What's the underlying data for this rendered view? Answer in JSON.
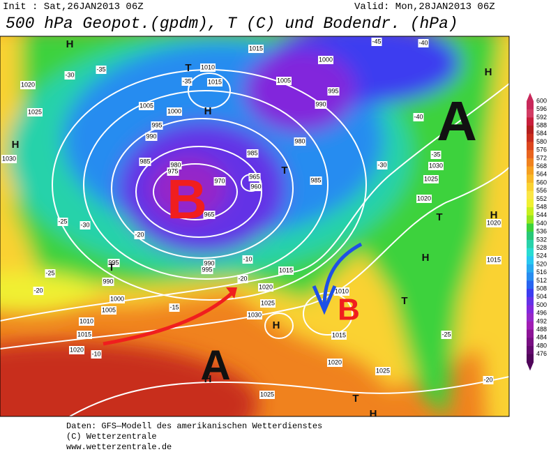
{
  "header": {
    "init": "Init : Sat,26JAN2013 06Z",
    "valid": "Valid: Mon,28JAN2013 06Z",
    "title": "500 hPa Geopot.(gpdm), T (C) und Bodendr. (hPa)"
  },
  "colorbar": [
    {
      "label": "600",
      "color": "#c8285a"
    },
    {
      "label": "596",
      "color": "#d23c64"
    },
    {
      "label": "592",
      "color": "#c81e3c"
    },
    {
      "label": "588",
      "color": "#b41e1e"
    },
    {
      "label": "584",
      "color": "#c82d1e"
    },
    {
      "label": "580",
      "color": "#dc461e"
    },
    {
      "label": "576",
      "color": "#e8641e"
    },
    {
      "label": "572",
      "color": "#f0821e"
    },
    {
      "label": "568",
      "color": "#f5a020"
    },
    {
      "label": "564",
      "color": "#f8b928"
    },
    {
      "label": "560",
      "color": "#fad232"
    },
    {
      "label": "556",
      "color": "#fbe646"
    },
    {
      "label": "552",
      "color": "#f0f032"
    },
    {
      "label": "548",
      "color": "#c8f01e"
    },
    {
      "label": "544",
      "color": "#96e61e"
    },
    {
      "label": "540",
      "color": "#3cd23c"
    },
    {
      "label": "536",
      "color": "#28c878"
    },
    {
      "label": "532",
      "color": "#28d2aa"
    },
    {
      "label": "528",
      "color": "#28dcd2"
    },
    {
      "label": "524",
      "color": "#28c8f0"
    },
    {
      "label": "520",
      "color": "#28aaf0"
    },
    {
      "label": "516",
      "color": "#288cf0"
    },
    {
      "label": "512",
      "color": "#2864f0"
    },
    {
      "label": "508",
      "color": "#3c3cf0"
    },
    {
      "label": "504",
      "color": "#6432e6"
    },
    {
      "label": "500",
      "color": "#8228dc"
    },
    {
      "label": "496",
      "color": "#9628c8"
    },
    {
      "label": "492",
      "color": "#a01eb4"
    },
    {
      "label": "488",
      "color": "#8c1496"
    },
    {
      "label": "484",
      "color": "#780f82"
    },
    {
      "label": "480",
      "color": "#640a6e"
    },
    {
      "label": "476",
      "color": "#50055a"
    }
  ],
  "contour_labels": [
    "1015",
    "1010",
    "1015",
    "1005",
    "1000",
    "995",
    "990",
    "985",
    "980",
    "975",
    "970",
    "965",
    "960",
    "965",
    "990",
    "995",
    "985",
    "980",
    "985",
    "990",
    "995",
    "1000",
    "1005",
    "1020",
    "1025",
    "1030",
    "1020",
    "1025",
    "1030",
    "1020",
    "1015",
    "1015",
    "1020",
    "1025",
    "1030",
    "1010",
    "1015",
    "1020",
    "1025",
    "1025",
    "1020",
    "1015",
    "1010",
    "1005",
    "1000",
    "995",
    "990",
    "-10",
    "-20",
    "-25",
    "-30",
    "-35",
    "-20",
    "-25",
    "-30",
    "-35",
    "-40",
    "-45",
    "-40",
    "-35",
    "-30",
    "-25",
    "-20",
    "-15",
    "-10",
    "-20"
  ],
  "symbols": [
    "H",
    "T",
    "H",
    "H",
    "H",
    "T",
    "T",
    "H",
    "H",
    "T",
    "H",
    "T",
    "T",
    "H",
    "H"
  ],
  "systems": [
    "B",
    "A",
    "A",
    "B"
  ],
  "footer": [
    "Daten: GFS—Modell des amerikanischen Wetterdienstes",
    "(C) Wetterzentrale",
    "www.wetterzentrale.de"
  ]
}
